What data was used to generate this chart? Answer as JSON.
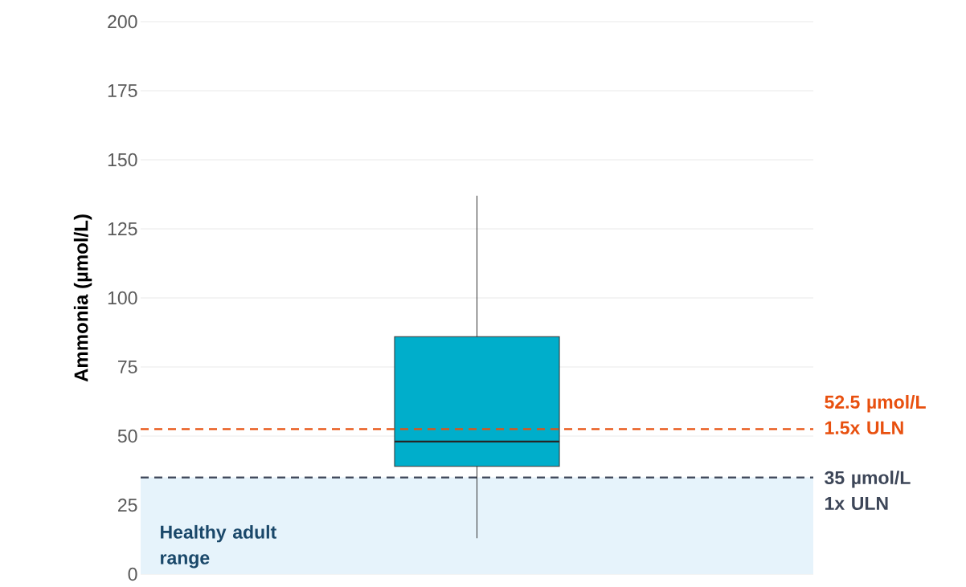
{
  "chart_data": {
    "type": "box",
    "ylabel": "Ammonia (µmol/L)",
    "categories": [
      null
    ],
    "color": "#00aecb",
    "boxes": [
      {
        "low": 13,
        "q1": 39,
        "median": 48,
        "q3": 86,
        "high": 137
      }
    ],
    "ylim": [
      0,
      200
    ],
    "yticks": [
      0,
      25,
      50,
      75,
      100,
      125,
      150,
      175,
      200
    ],
    "grid": "y",
    "ref_lines": [
      {
        "axis": "y",
        "value": 52.5,
        "label": "52.5 µmol/L 1.5x ULN",
        "color": "#e8500f",
        "line_style": "dashed"
      },
      {
        "axis": "y",
        "value": 35,
        "label": "35 µmol/L 1x ULN",
        "color": "#3d4658",
        "line_style": "dashed"
      }
    ],
    "bands": [
      {
        "axis": "y",
        "from": 0,
        "to": 35,
        "label": "Healthy adult range",
        "color": "#e6f3fb"
      }
    ]
  }
}
